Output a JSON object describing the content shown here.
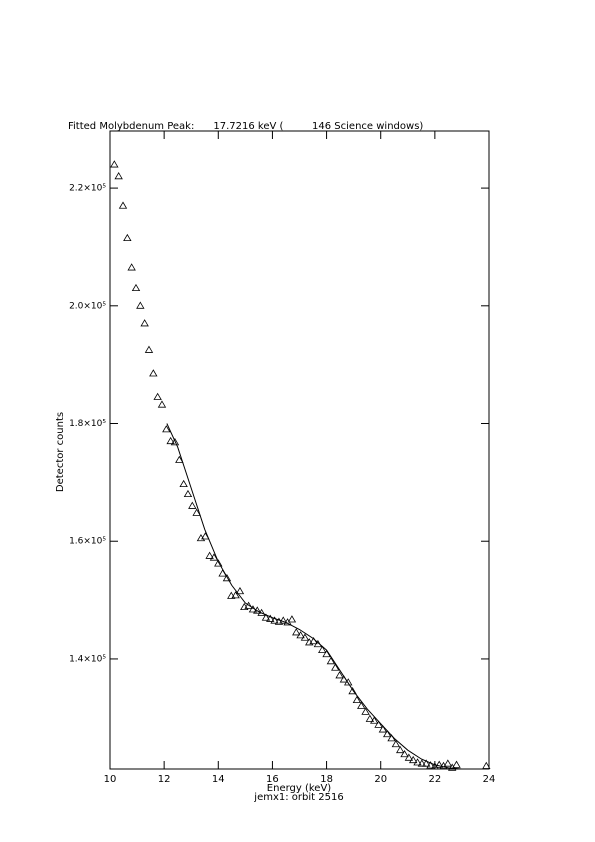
{
  "chart_data": {
    "type": "scatter",
    "title": "Fitted Molybdenum Peak:      17.7216 keV (         146 Science windows)",
    "subtitle": "jemx1: orbit 2516",
    "x_label": "Energy (keV)",
    "y_label": "Detector counts",
    "xlim": [
      10,
      24
    ],
    "ylim": [
      121300,
      229700
    ],
    "xticks": [
      10,
      12,
      14,
      16,
      18,
      20,
      22,
      24
    ],
    "yticks": [
      {
        "value": 140000,
        "label": "1.4×10⁵"
      },
      {
        "value": 160000,
        "label": "1.6×10⁵"
      },
      {
        "value": 180000,
        "label": "1.8×10⁵"
      },
      {
        "value": 200000,
        "label": "2.0×10⁵"
      },
      {
        "value": 220000,
        "label": "2.2×10⁵"
      }
    ],
    "grid": false,
    "series": [
      {
        "style": "triangle",
        "color": "#000000",
        "x": [
          10.16,
          10.32,
          10.48,
          10.64,
          10.8,
          10.96,
          11.12,
          11.28,
          11.44,
          11.6,
          11.76,
          11.92,
          12.08,
          12.24,
          12.4,
          12.56,
          12.72,
          12.88,
          13.04,
          13.2,
          13.36,
          13.52,
          13.68,
          13.84,
          14.0,
          14.16,
          14.32,
          14.48,
          14.64,
          14.8,
          14.96,
          15.12,
          15.28,
          15.44,
          15.6,
          15.76,
          15.92,
          16.08,
          16.24,
          16.4,
          16.56,
          16.72,
          16.88,
          17.04,
          17.2,
          17.36,
          17.52,
          17.68,
          17.84,
          18.0,
          18.16,
          18.32,
          18.48,
          18.64,
          18.8,
          18.96,
          19.12,
          19.28,
          19.44,
          19.6,
          19.76,
          19.92,
          20.08,
          20.24,
          20.4,
          20.56,
          20.72,
          20.88,
          21.04,
          21.2,
          21.36,
          21.52,
          21.68,
          21.84,
          22.0,
          22.16,
          22.32,
          22.48,
          22.64,
          22.8,
          23.9
        ],
        "values": [
          224000,
          222000,
          217000,
          211500,
          206500,
          203000,
          200000,
          197000,
          192500,
          188500,
          184500,
          183200,
          179000,
          177000,
          176800,
          173800,
          169700,
          168000,
          166000,
          164800,
          160500,
          160800,
          157500,
          157200,
          156200,
          154500,
          153700,
          150700,
          150800,
          151500,
          148800,
          149000,
          148400,
          148200,
          147800,
          147000,
          146800,
          146500,
          146300,
          146500,
          146200,
          146700,
          144500,
          144000,
          143600,
          142800,
          143000,
          142500,
          141500,
          140800,
          139600,
          138500,
          137200,
          136500,
          136000,
          134500,
          133000,
          132000,
          131000,
          129800,
          129500,
          128800,
          128000,
          127200,
          126500,
          125500,
          124500,
          123800,
          123200,
          122800,
          122400,
          122200,
          122200,
          121900,
          121700,
          122000,
          121800,
          122200,
          121500,
          122000,
          121800
        ]
      },
      {
        "style": "line",
        "color": "#000000",
        "x": [
          12.1,
          12.5,
          13.0,
          13.5,
          14.0,
          14.5,
          15.0,
          15.5,
          16.0,
          16.5,
          17.0,
          17.5,
          18.0,
          18.5,
          19.0,
          19.5,
          20.0,
          20.5,
          21.0,
          21.5,
          22.0,
          22.5,
          23.0
        ],
        "values": [
          180000,
          176000,
          169000,
          162000,
          156500,
          152500,
          149500,
          148000,
          147000,
          146200,
          145000,
          143500,
          141500,
          138000,
          134500,
          131500,
          129000,
          126500,
          124500,
          123000,
          122000,
          121500,
          121300
        ]
      }
    ]
  }
}
